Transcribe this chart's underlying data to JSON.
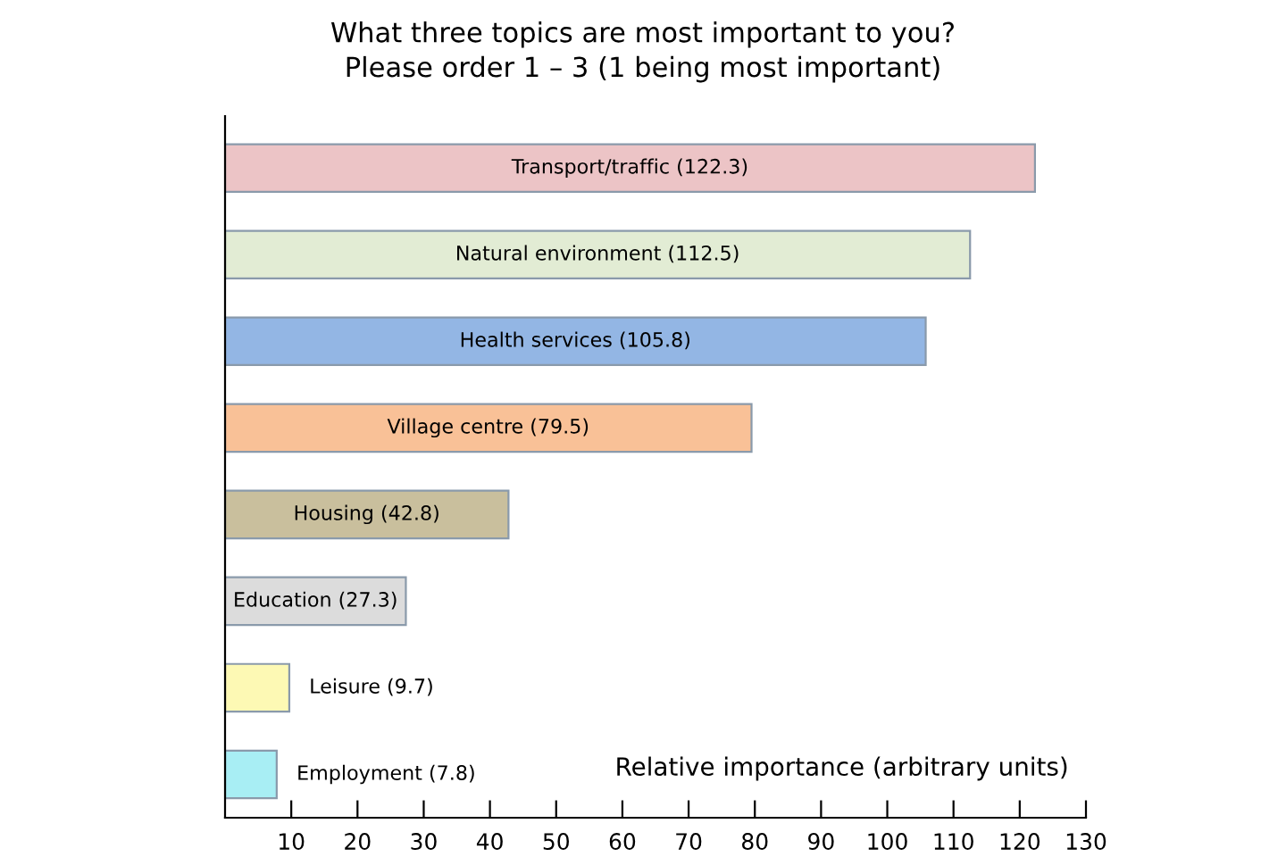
{
  "chart_data": {
    "type": "bar",
    "orientation": "horizontal",
    "title": "What three topics are most important to you?\nPlease order 1 – 3 (1 being most important)",
    "xlabel": "Relative importance (arbitrary units)",
    "categories": [
      null,
      null,
      null,
      null,
      null,
      null,
      null,
      null
    ],
    "values": [
      122.3,
      112.5,
      105.8,
      79.5,
      42.8,
      27.3,
      9.7,
      7.8
    ],
    "colors": [
      "#ecc4c6",
      "#e2ecd4",
      "#93b6e4",
      "#f9c197",
      "#c9bf9d",
      "#dcdcdc",
      "#fdf9b4",
      "#a8eef4"
    ],
    "value_labels": [
      "Transport/traffic (122.3)",
      "Natural environment (112.5)",
      "Health services (105.8)",
      "Village centre (79.5)",
      "Housing (42.8)",
      "Education (27.3)",
      "Leisure (9.7)",
      "Employment (7.8)"
    ],
    "xlim": [
      0,
      130
    ],
    "xticks": [
      10,
      20,
      30,
      40,
      50,
      60,
      70,
      80,
      90,
      100,
      110,
      120,
      130
    ],
    "grid": false,
    "legend": false
  }
}
